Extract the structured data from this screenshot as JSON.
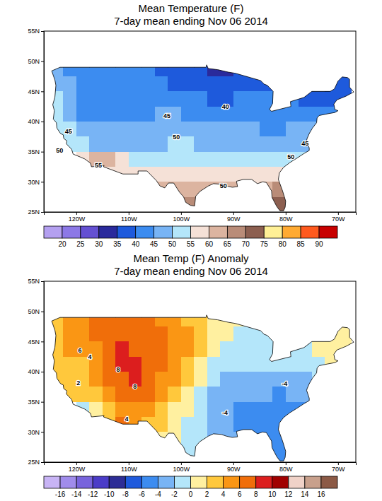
{
  "chart_data": [
    {
      "type": "heatmap",
      "title": "Mean Temperature (F)",
      "subtitle": "7-day mean ending Nov 06 2014",
      "x": [
        -123.75,
        -121.25,
        -118.75,
        -116.25,
        -113.75,
        -111.25,
        -108.75,
        -106.25,
        -103.75,
        -101.25,
        -98.75,
        -96.25,
        -93.75,
        -91.25,
        -88.75,
        -86.25,
        -83.75,
        -81.25,
        -78.75,
        -76.25,
        -73.75,
        -71.25,
        -68.75
      ],
      "y": [
        48.75,
        46.25,
        43.75,
        41.25,
        38.75,
        36.25,
        33.75,
        31.25,
        28.75,
        26.25
      ],
      "values": [
        [
          46,
          43,
          41,
          40,
          40,
          41,
          41,
          40,
          38,
          37,
          36,
          35,
          33,
          34,
          36,
          null,
          null,
          null,
          null,
          null,
          null,
          null,
          null
        ],
        [
          48,
          45,
          43,
          41,
          41,
          42,
          42,
          41,
          40,
          39,
          38,
          37,
          36,
          37,
          38,
          39,
          39,
          null,
          null,
          null,
          null,
          38,
          37
        ],
        [
          50,
          46,
          43,
          41,
          42,
          42,
          42,
          43,
          43,
          42,
          41,
          40,
          39,
          39,
          40,
          41,
          41,
          41,
          40,
          39,
          38,
          39,
          39
        ],
        [
          52,
          48,
          44,
          43,
          43,
          43,
          43,
          44,
          45,
          45,
          44,
          43,
          42,
          42,
          42,
          42,
          42,
          42,
          42,
          42,
          43,
          44,
          null
        ],
        [
          54,
          51,
          47,
          45,
          45,
          45,
          45,
          45,
          47,
          48,
          47,
          46,
          45,
          45,
          45,
          45,
          44,
          44,
          45,
          46,
          47,
          null,
          null
        ],
        [
          null,
          54,
          52,
          48,
          47,
          46,
          46,
          47,
          49,
          50,
          50,
          49,
          48,
          48,
          47,
          46,
          45,
          45,
          46,
          47,
          null,
          null,
          null
        ],
        [
          null,
          null,
          58,
          61,
          60,
          56,
          52,
          52,
          53,
          53,
          53,
          53,
          52,
          52,
          51,
          51,
          51,
          52,
          53,
          54,
          null,
          null,
          null
        ],
        [
          null,
          null,
          null,
          null,
          59,
          58,
          56,
          55,
          57,
          57,
          57,
          57,
          56,
          56,
          56,
          55,
          55,
          57,
          null,
          null,
          null,
          null,
          null
        ],
        [
          null,
          null,
          null,
          null,
          null,
          null,
          null,
          null,
          61,
          62,
          63,
          64,
          60,
          60,
          60,
          58,
          62,
          66,
          null,
          null,
          null,
          null,
          null
        ],
        [
          null,
          null,
          null,
          null,
          null,
          null,
          null,
          null,
          null,
          null,
          67,
          67,
          null,
          null,
          null,
          null,
          70,
          72,
          null,
          null,
          null,
          null,
          null
        ]
      ],
      "xlim": [
        -126.2,
        -66.6
      ],
      "ylim": [
        25,
        55
      ],
      "xticks": [
        {
          "value": -120,
          "label": "120W"
        },
        {
          "value": -110,
          "label": "110W"
        },
        {
          "value": -100,
          "label": "100W"
        },
        {
          "value": -90,
          "label": "90W"
        },
        {
          "value": -80,
          "label": "80W"
        },
        {
          "value": -70,
          "label": "70W"
        }
      ],
      "yticks": [
        {
          "value": 25,
          "label": "25N"
        },
        {
          "value": 30,
          "label": "30N"
        },
        {
          "value": 35,
          "label": "35N"
        },
        {
          "value": 40,
          "label": "40N"
        },
        {
          "value": 45,
          "label": "45N"
        },
        {
          "value": 50,
          "label": "50N"
        },
        {
          "value": 55,
          "label": "55N"
        }
      ],
      "colorbar": {
        "ticks": [
          20,
          25,
          30,
          35,
          40,
          45,
          50,
          55,
          60,
          65,
          70,
          75,
          80,
          85,
          90
        ],
        "colors": [
          "#b4a0f0",
          "#8c78e6",
          "#6450d2",
          "#2a2a9c",
          "#1e5adc",
          "#3c8cf0",
          "#78b4f5",
          "#b4e6fa",
          "#f5e1d7",
          "#dcb4a0",
          "#b98c78",
          "#8c5f50",
          "#fff096",
          "#ffaa32",
          "#ff5a1e",
          "#c80000"
        ]
      },
      "annotations": [
        {
          "label": "40",
          "x": -91.5,
          "y": 42.5
        },
        {
          "label": "45",
          "x": -102.7,
          "y": 40.9
        },
        {
          "label": "45",
          "x": -121.5,
          "y": 38.4
        },
        {
          "label": "50",
          "x": -100.9,
          "y": 37.4
        },
        {
          "label": "50",
          "x": -123.2,
          "y": 35.2
        },
        {
          "label": "55",
          "x": -115.8,
          "y": 32.8
        },
        {
          "label": "45",
          "x": -76.3,
          "y": 36.4
        },
        {
          "label": "50",
          "x": -79.0,
          "y": 34.2
        },
        {
          "label": "50",
          "x": -91.9,
          "y": 29.4
        }
      ]
    },
    {
      "type": "heatmap",
      "title": "Mean Temp (F) Anomaly",
      "subtitle": "7-day mean ending Nov 06 2014",
      "x": [
        -123.75,
        -121.25,
        -118.75,
        -116.25,
        -113.75,
        -111.25,
        -108.75,
        -106.25,
        -103.75,
        -101.25,
        -98.75,
        -96.25,
        -93.75,
        -91.25,
        -88.75,
        -86.25,
        -83.75,
        -81.25,
        -78.75,
        -76.25,
        -73.75,
        -71.25,
        -68.75
      ],
      "y": [
        48.75,
        46.25,
        43.75,
        41.25,
        38.75,
        36.25,
        33.75,
        31.25,
        28.75,
        26.25
      ],
      "values": [
        [
          3,
          4,
          5,
          6,
          6,
          7,
          7,
          6,
          5,
          4,
          3,
          2,
          1,
          0,
          0,
          null,
          null,
          null,
          null,
          null,
          null,
          null,
          null
        ],
        [
          3,
          4,
          5,
          6,
          6,
          7,
          7,
          7,
          6,
          5,
          4,
          2,
          1,
          0,
          -1,
          -1,
          -1,
          null,
          null,
          null,
          null,
          1,
          1
        ],
        [
          3,
          5,
          5,
          5,
          6,
          8,
          7,
          7,
          6,
          5,
          4,
          2,
          0,
          -1,
          -1,
          -2,
          -2,
          -2,
          -1,
          -1,
          0,
          1,
          1
        ],
        [
          2,
          3,
          3,
          5,
          7,
          8,
          8,
          7,
          6,
          5,
          3,
          1,
          -1,
          -2,
          -2,
          -2,
          -2,
          -2,
          -2,
          -1,
          -1,
          0,
          null
        ],
        [
          2,
          2,
          3,
          4,
          6,
          7,
          8,
          7,
          5,
          4,
          2,
          0,
          -2,
          -3,
          -3,
          -3,
          -3,
          -4,
          -4,
          -3,
          -2,
          null,
          null
        ],
        [
          null,
          2,
          2,
          3,
          5,
          6,
          6,
          6,
          4,
          3,
          1,
          -1,
          -3,
          -4,
          -4,
          -4,
          -4,
          -5,
          -4,
          -4,
          null,
          null,
          null
        ],
        [
          null,
          null,
          -1,
          1,
          3,
          4,
          5,
          4,
          3,
          1,
          0,
          -2,
          -4,
          -4,
          -5,
          -5,
          -5,
          -5,
          -5,
          -5,
          null,
          null,
          null
        ],
        [
          null,
          null,
          null,
          null,
          3,
          6,
          4,
          3,
          2,
          0,
          -1,
          -2,
          -3,
          -4,
          -5,
          -5,
          -5,
          -5,
          null,
          null,
          null,
          null,
          null
        ],
        [
          null,
          null,
          null,
          null,
          null,
          null,
          null,
          null,
          1,
          0,
          -1,
          -2,
          -3,
          -4,
          -4,
          -5,
          -5,
          -5,
          null,
          null,
          null,
          null,
          null
        ],
        [
          null,
          null,
          null,
          null,
          null,
          null,
          null,
          null,
          null,
          null,
          -1,
          -1,
          null,
          null,
          null,
          null,
          -5,
          -5,
          null,
          null,
          null,
          null,
          null
        ]
      ],
      "xlim": [
        -126.2,
        -66.6
      ],
      "ylim": [
        25,
        55
      ],
      "xticks": [
        {
          "value": -120,
          "label": "120W"
        },
        {
          "value": -110,
          "label": "110W"
        },
        {
          "value": -100,
          "label": "100W"
        },
        {
          "value": -90,
          "label": "90W"
        },
        {
          "value": -80,
          "label": "80W"
        },
        {
          "value": -70,
          "label": "70W"
        }
      ],
      "yticks": [
        {
          "value": 25,
          "label": "25N"
        },
        {
          "value": 30,
          "label": "30N"
        },
        {
          "value": 35,
          "label": "35N"
        },
        {
          "value": 40,
          "label": "40N"
        },
        {
          "value": 45,
          "label": "45N"
        },
        {
          "value": 50,
          "label": "50N"
        },
        {
          "value": 55,
          "label": "55N"
        }
      ],
      "colorbar": {
        "ticks": [
          -16,
          -14,
          -12,
          -10,
          -8,
          -6,
          -4,
          -2,
          0,
          2,
          4,
          6,
          8,
          10,
          12,
          14,
          16
        ],
        "colors": [
          "#c8b4f5",
          "#a08ceb",
          "#7864dc",
          "#4b3cc8",
          "#2d2d96",
          "#1e5adc",
          "#3c8cf0",
          "#78b4f5",
          "#b4e6fa",
          "#fff0a0",
          "#ffc83c",
          "#fa9614",
          "#f06e0a",
          "#dc1e1e",
          "#a00000",
          "#f0d2c8",
          "#c8a08c",
          "#8c5a46"
        ]
      },
      "annotations": [
        {
          "label": "6",
          "x": -119.3,
          "y": 43.5
        },
        {
          "label": "4",
          "x": -117.4,
          "y": 42.5
        },
        {
          "label": "8",
          "x": -112.0,
          "y": 40.4
        },
        {
          "label": "8",
          "x": -108.8,
          "y": 37.6
        },
        {
          "label": "2",
          "x": -119.6,
          "y": 38.1
        },
        {
          "label": "4",
          "x": -110.4,
          "y": 32.2
        },
        {
          "label": "-4",
          "x": -91.6,
          "y": 33.2
        },
        {
          "label": "-4",
          "x": -80.2,
          "y": 38.0
        }
      ]
    }
  ]
}
